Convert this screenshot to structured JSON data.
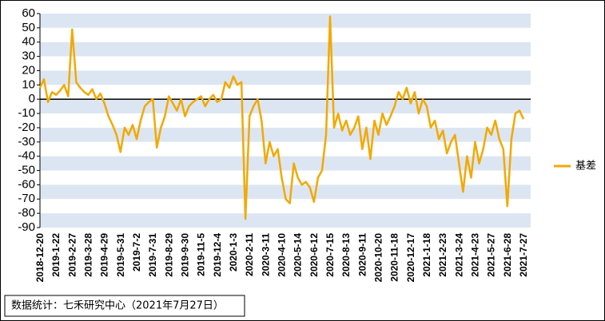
{
  "chart_data": {
    "type": "line",
    "categories": [
      "2018-12-20",
      null,
      null,
      null,
      "2019-1-22",
      null,
      null,
      null,
      "2019-2-27",
      null,
      null,
      null,
      "2019-3-28",
      null,
      null,
      null,
      "2019-4-29",
      null,
      null,
      null,
      "2019-5-31",
      null,
      null,
      null,
      "2019-7-2",
      null,
      null,
      null,
      "2019-7-31",
      null,
      null,
      null,
      "2019-8-29",
      null,
      null,
      null,
      "2019-9-30",
      null,
      null,
      null,
      "2019-11-5",
      null,
      null,
      null,
      "2019-12-4",
      null,
      null,
      null,
      "2020-1-3",
      null,
      null,
      null,
      "2020-2-11",
      null,
      null,
      null,
      "2020-3-11",
      null,
      null,
      null,
      "2020-4-10",
      null,
      null,
      null,
      "2020-5-14",
      null,
      null,
      null,
      "2020-6-12",
      null,
      null,
      null,
      "2020-7-15",
      null,
      null,
      null,
      "2020-8-13",
      null,
      null,
      null,
      "2020-9-11",
      null,
      null,
      null,
      "2020-10-20",
      null,
      null,
      null,
      "2020-11-18",
      null,
      null,
      null,
      "2020-12-17",
      null,
      null,
      null,
      "2021-1-18",
      null,
      null,
      null,
      "2021-2-23",
      null,
      null,
      null,
      "2021-3-24",
      null,
      null,
      null,
      "2021-4-23",
      null,
      null,
      null,
      "2021-5-27",
      null,
      null,
      null,
      "2021-6-28",
      null,
      null,
      null,
      "2021-7-27"
    ],
    "series": [
      {
        "name": "基差",
        "color": "#f2a900",
        "values": [
          8,
          14,
          -2,
          5,
          3,
          6,
          10,
          2,
          49,
          12,
          8,
          5,
          3,
          7,
          0,
          4,
          -3,
          -12,
          -18,
          -25,
          -37,
          -20,
          -25,
          -18,
          -28,
          -15,
          -5,
          -2,
          0,
          -34,
          -20,
          -12,
          2,
          -3,
          -8,
          0,
          -12,
          -5,
          -2,
          0,
          2,
          -5,
          0,
          3,
          -2,
          0,
          12,
          8,
          16,
          10,
          12,
          -84,
          -12,
          -5,
          0,
          -15,
          -45,
          -30,
          -40,
          -35,
          -55,
          -70,
          -73,
          -45,
          -55,
          -60,
          -58,
          -62,
          -72,
          -55,
          -50,
          -25,
          58,
          -20,
          -10,
          -22,
          -15,
          -25,
          -20,
          -12,
          -35,
          -20,
          -42,
          -15,
          -25,
          -10,
          -18,
          -12,
          -5,
          5,
          0,
          8,
          -3,
          5,
          -10,
          0,
          -5,
          -20,
          -15,
          -28,
          -22,
          -38,
          -30,
          -25,
          -45,
          -65,
          -40,
          -55,
          -30,
          -45,
          -35,
          -20,
          -25,
          -15,
          -28,
          -35,
          -75,
          -28,
          -10,
          -8,
          -14
        ]
      }
    ],
    "ylim": [
      -90,
      60
    ],
    "yticks": [
      60,
      50,
      40,
      30,
      20,
      10,
      0,
      -10,
      -20,
      -30,
      -40,
      -50,
      -60,
      -70,
      -80,
      -90
    ],
    "grid": "bands",
    "legend": "right",
    "source": "数据统计：七禾研究中心（2021年7月27日）"
  }
}
